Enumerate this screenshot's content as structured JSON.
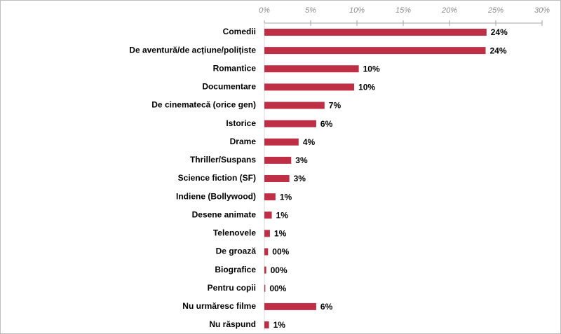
{
  "chart_data": {
    "type": "bar",
    "orientation": "horizontal",
    "color": "#be2f45",
    "categories": [
      "Comedii",
      "De aventură/de acțiune/polițiste",
      "Romantice",
      "Documentare",
      "De cinematecă (orice gen)",
      "Istorice",
      "Drame",
      "Thriller/Suspans",
      "Science fiction (SF)",
      "Indiene (Bollywood)",
      "Desene animate",
      "Telenovele",
      "De groază",
      "Biografice",
      "Pentru copii",
      "Nu urmăresc filme",
      "Nu răspund"
    ],
    "values": [
      24.0,
      23.9,
      10.2,
      9.7,
      6.5,
      5.6,
      3.7,
      2.9,
      2.7,
      1.2,
      0.8,
      0.6,
      0.4,
      0.2,
      0.1,
      5.6,
      0.5
    ],
    "value_labels": [
      "24%",
      "24%",
      "10%",
      "10%",
      "7%",
      "6%",
      "4%",
      "3%",
      "3%",
      "1%",
      "1%",
      "1%",
      "00%",
      "00%",
      "00%",
      "6%",
      "1%"
    ],
    "xlim": [
      0,
      30
    ],
    "xticks": [
      {
        "value": 0,
        "label": "0%"
      },
      {
        "value": 5,
        "label": "5%"
      },
      {
        "value": 10,
        "label": "10%"
      },
      {
        "value": 15,
        "label": "15%"
      },
      {
        "value": 20,
        "label": "20%"
      },
      {
        "value": 25,
        "label": "25%"
      },
      {
        "value": 30,
        "label": "30%"
      }
    ]
  }
}
